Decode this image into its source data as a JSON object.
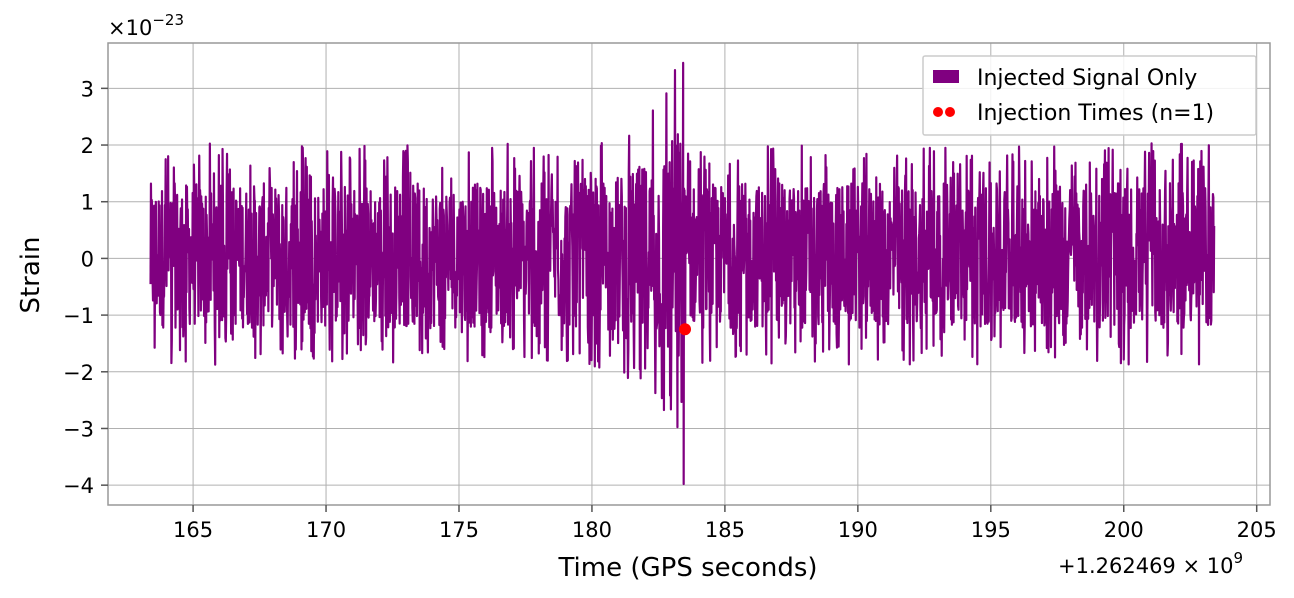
{
  "chart_data": {
    "type": "line",
    "xlabel": "Time (GPS seconds)",
    "ylabel": "Strain",
    "x_offset_text": "+1.262469 × 10",
    "x_offset_exponent": "9",
    "y_scale_text": "×10",
    "y_scale_exponent": "−23",
    "xlim": [
      161.8,
      205.5
    ],
    "ylim": [
      -4.35,
      3.8
    ],
    "x_ticks": [
      165,
      170,
      175,
      180,
      185,
      190,
      195,
      200,
      205
    ],
    "x_tick_labels": [
      "165",
      "170",
      "175",
      "180",
      "185",
      "190",
      "195",
      "200",
      "205"
    ],
    "y_ticks": [
      -4,
      -3,
      -2,
      -1,
      0,
      1,
      2,
      3
    ],
    "y_tick_labels": [
      "−4",
      "−3",
      "−2",
      "−1",
      "0",
      "1",
      "2",
      "3"
    ],
    "grid": true,
    "legend_position": "top-right",
    "series": [
      {
        "name": "Injected Signal Only",
        "kind": "line",
        "color": "#800080",
        "x_range": [
          163.4,
          203.4
        ],
        "typical_envelope": [
          -1.3,
          1.4
        ],
        "peak_time": 183.45,
        "peak_max": 3.45,
        "peak_min": -3.98
      },
      {
        "name": "Injection Times (n=1)",
        "kind": "scatter",
        "color": "#ff0000",
        "points": [
          {
            "x": 183.5,
            "y": -1.25
          }
        ]
      }
    ]
  }
}
